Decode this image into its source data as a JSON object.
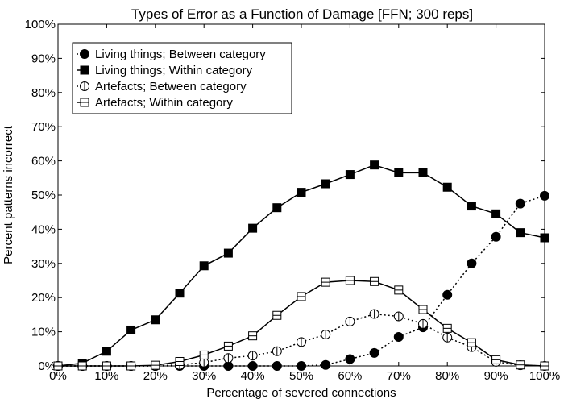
{
  "chart_data": {
    "type": "line",
    "title": "Types of Error as a Function of Damage [FFN; 300 reps]",
    "xlabel": "Percentage of severed connections",
    "ylabel": "Percent patterns incorrect",
    "x": [
      0,
      5,
      10,
      15,
      20,
      25,
      30,
      35,
      40,
      45,
      50,
      55,
      60,
      65,
      70,
      75,
      80,
      85,
      90,
      95,
      100
    ],
    "x_tick_labels": [
      "0%",
      "10%",
      "20%",
      "30%",
      "40%",
      "50%",
      "60%",
      "70%",
      "80%",
      "90%",
      "100%"
    ],
    "y_tick_labels": [
      "0%",
      "10%",
      "20%",
      "30%",
      "40%",
      "50%",
      "60%",
      "70%",
      "80%",
      "90%",
      "100%"
    ],
    "xlim": [
      0,
      100
    ],
    "ylim": [
      0,
      100
    ],
    "grid": false,
    "legend_position": "top-left",
    "series": [
      {
        "name": "Living things; Between category",
        "marker": "filled-circle",
        "line": "dotted",
        "values": [
          0,
          0,
          0,
          0,
          0,
          0,
          0,
          0,
          0,
          0,
          0,
          0.3,
          2,
          3.8,
          8.5,
          11.3,
          20.8,
          30,
          37.8,
          47.5,
          49.8
        ]
      },
      {
        "name": "Living things; Within category",
        "marker": "filled-square",
        "line": "solid",
        "values": [
          0,
          0.8,
          4.3,
          10.5,
          13.5,
          21.3,
          29.3,
          33,
          40.3,
          46.3,
          50.8,
          53.3,
          56,
          58.8,
          56.5,
          56.5,
          52.3,
          46.8,
          44.5,
          39,
          37.5
        ]
      },
      {
        "name": "Artefacts; Between category",
        "marker": "open-circle",
        "line": "dotted",
        "values": [
          0,
          0,
          0,
          0,
          0,
          0.3,
          1,
          2.3,
          3,
          4.3,
          7,
          9.2,
          13,
          15.2,
          14.5,
          12.3,
          8.3,
          5.5,
          1.2,
          0.2,
          0
        ]
      },
      {
        "name": "Artefacts; Within category",
        "marker": "open-square",
        "line": "solid",
        "values": [
          0,
          0,
          0,
          0,
          0.2,
          1.3,
          3.2,
          5.8,
          8.8,
          14.8,
          20.3,
          24.5,
          25,
          24.7,
          22.2,
          16.5,
          11,
          6.8,
          1.8,
          0.3,
          0
        ]
      }
    ]
  }
}
